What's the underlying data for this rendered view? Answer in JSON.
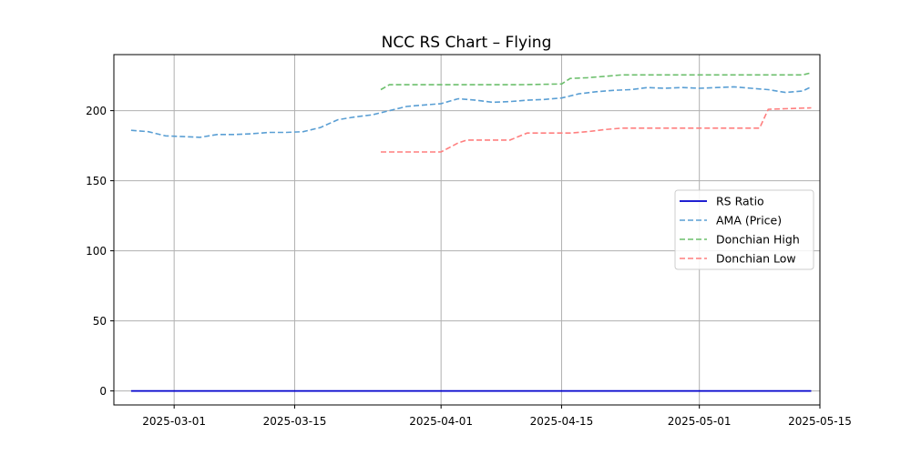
{
  "chart_data": {
    "type": "line",
    "title": "NCC RS Chart – Flying",
    "xlabel": "",
    "ylabel": "",
    "grid": true,
    "legend_position": "center-right",
    "xlim": [
      "2025-02-22",
      "2025-05-15"
    ],
    "ylim": [
      -10,
      240
    ],
    "x_ticks": [
      "2025-03-01",
      "2025-03-15",
      "2025-04-01",
      "2025-04-15",
      "2025-05-01",
      "2025-05-15"
    ],
    "y_ticks": [
      0,
      50,
      100,
      150,
      200
    ],
    "series": [
      {
        "name": "RS Ratio",
        "color": "#0000cc",
        "style": "solid",
        "x": [
          "2025-02-24",
          "2025-05-14"
        ],
        "y": [
          0.0,
          0.0
        ]
      },
      {
        "name": "AMA (Price)",
        "color": "#5a9fd4",
        "style": "dashed",
        "x": [
          "2025-02-24",
          "2025-02-26",
          "2025-02-28",
          "2025-03-02",
          "2025-03-04",
          "2025-03-06",
          "2025-03-08",
          "2025-03-10",
          "2025-03-12",
          "2025-03-14",
          "2025-03-16",
          "2025-03-18",
          "2025-03-20",
          "2025-03-22",
          "2025-03-24",
          "2025-03-26",
          "2025-03-28",
          "2025-03-30",
          "2025-04-01",
          "2025-04-03",
          "2025-04-05",
          "2025-04-07",
          "2025-04-09",
          "2025-04-11",
          "2025-04-13",
          "2025-04-15",
          "2025-04-17",
          "2025-04-19",
          "2025-04-21",
          "2025-04-23",
          "2025-04-25",
          "2025-04-27",
          "2025-04-29",
          "2025-05-01",
          "2025-05-03",
          "2025-05-05",
          "2025-05-07",
          "2025-05-09",
          "2025-05-11",
          "2025-05-13",
          "2025-05-14"
        ],
        "y": [
          186,
          185,
          182,
          181.5,
          181,
          183,
          183,
          183.5,
          184.5,
          184.5,
          185,
          188,
          193.5,
          195.5,
          197,
          200,
          203,
          204,
          205,
          208.5,
          207.5,
          206,
          206.5,
          207.5,
          208,
          209,
          212,
          213.5,
          214.5,
          215,
          216.5,
          216,
          216.5,
          216,
          216.5,
          217,
          216,
          215,
          213,
          214,
          217
        ]
      },
      {
        "name": "Donchian High",
        "color": "#6cbf6c",
        "style": "dashed",
        "x": [
          "2025-03-25",
          "2025-03-26",
          "2025-04-05",
          "2025-04-10",
          "2025-04-15",
          "2025-04-16",
          "2025-04-18",
          "2025-04-20",
          "2025-04-22",
          "2025-04-30",
          "2025-05-10",
          "2025-05-13",
          "2025-05-14"
        ],
        "y": [
          215,
          218.5,
          218.5,
          218.5,
          219,
          223,
          223.5,
          224.5,
          225.5,
          225.5,
          225.5,
          225.5,
          227
        ]
      },
      {
        "name": "Donchian Low",
        "color": "#ff7f7f",
        "style": "dashed",
        "x": [
          "2025-03-25",
          "2025-04-01",
          "2025-04-03",
          "2025-04-04",
          "2025-04-09",
          "2025-04-11",
          "2025-04-16",
          "2025-04-18",
          "2025-04-20",
          "2025-04-22",
          "2025-05-08",
          "2025-05-09",
          "2025-05-14"
        ],
        "y": [
          170.5,
          170.5,
          177,
          179,
          179,
          184,
          184,
          185,
          186.5,
          187.5,
          187.5,
          201,
          202
        ]
      }
    ]
  }
}
